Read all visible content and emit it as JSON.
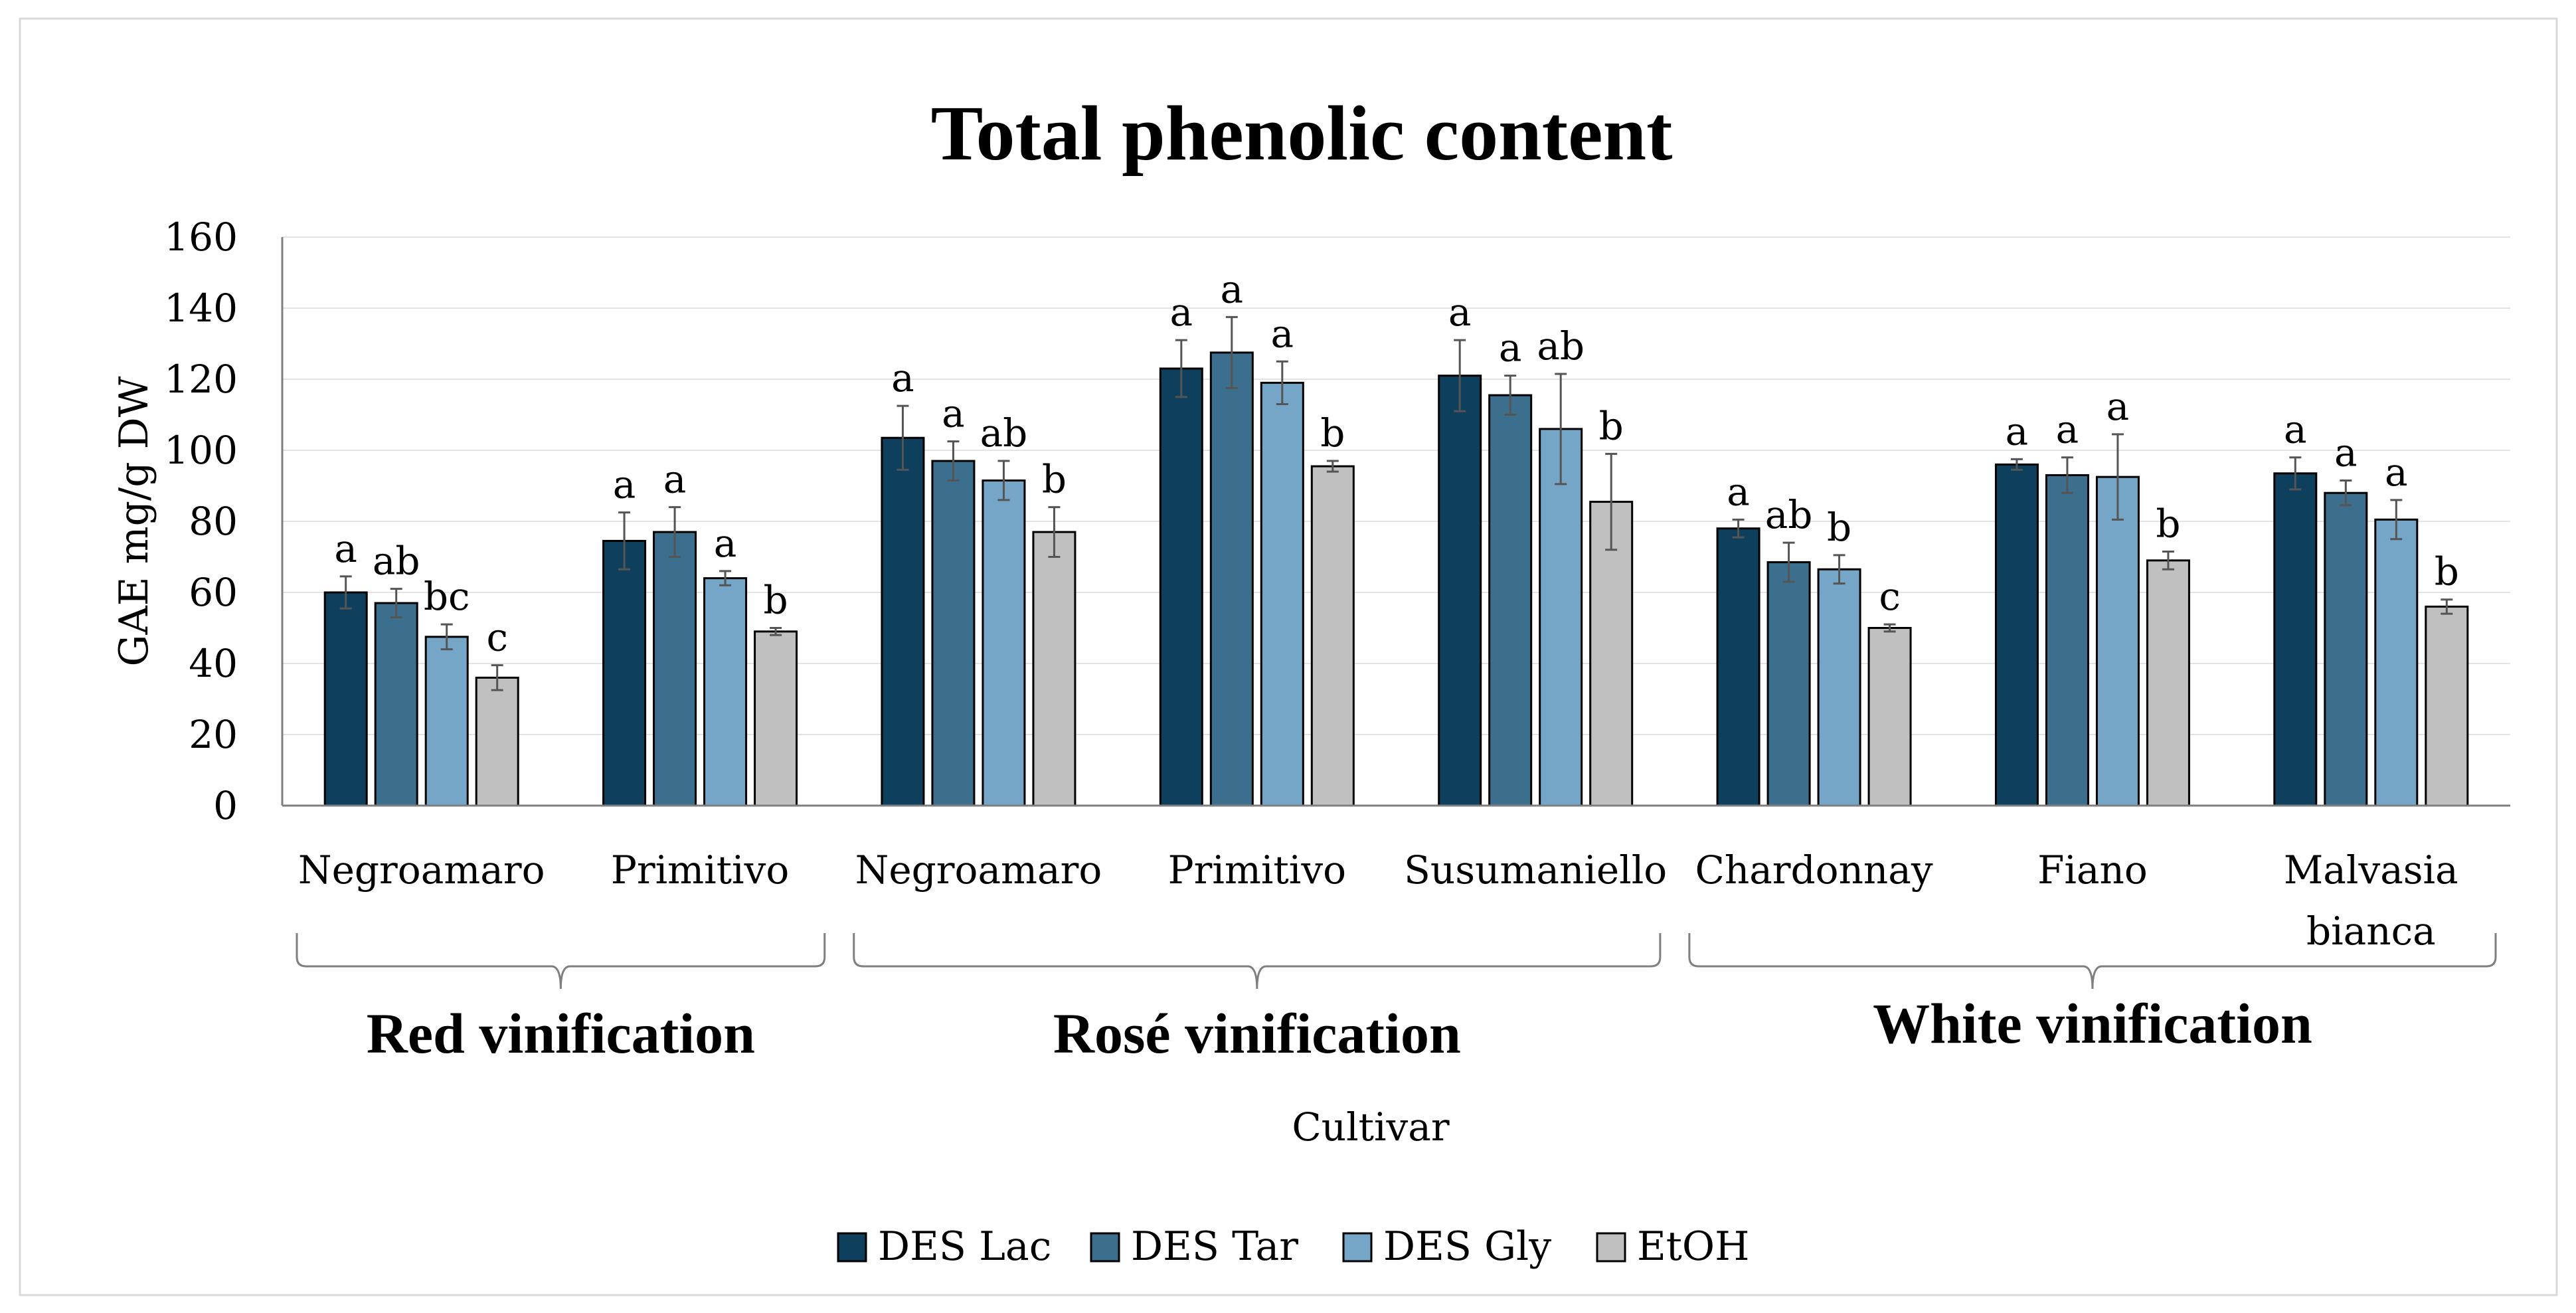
{
  "chart_data": {
    "type": "bar",
    "title": "Total phenolic content",
    "ylabel": "GAE mg/g DW",
    "xlabel": "Cultivar",
    "ylim": [
      0,
      160
    ],
    "yticks": [
      0,
      20,
      40,
      60,
      80,
      100,
      120,
      140,
      160
    ],
    "grid": true,
    "legend_position": "bottom",
    "categories": [
      "Negroamaro",
      "Primitivo",
      "Negroamaro",
      "Primitivo",
      "Susumaniello",
      "Chardonnay",
      "Fiano",
      "Malvasia bianca"
    ],
    "category_lines": [
      [
        "Negroamaro"
      ],
      [
        "Primitivo"
      ],
      [
        "Negroamaro"
      ],
      [
        "Primitivo"
      ],
      [
        "Susumaniello"
      ],
      [
        "Chardonnay"
      ],
      [
        "Fiano"
      ],
      [
        "Malvasia",
        "bianca"
      ]
    ],
    "groups": [
      {
        "label": "Red vinification",
        "categories": [
          0,
          1
        ]
      },
      {
        "label": "Rosé vinification",
        "categories": [
          2,
          3,
          4
        ]
      },
      {
        "label": "White vinification",
        "categories": [
          5,
          6,
          7
        ]
      }
    ],
    "series": [
      {
        "name": "DES Lac",
        "color": "#0e3f5c",
        "values": [
          60,
          74.5,
          103.5,
          123,
          121,
          78,
          96,
          93.5
        ],
        "errors": [
          4.5,
          8,
          9,
          8,
          10,
          2.5,
          1.5,
          4.5
        ],
        "letters": [
          "a",
          "a",
          "a",
          "a",
          "a",
          "a",
          "a",
          "a"
        ]
      },
      {
        "name": "DES Tar",
        "color": "#3c6f8e",
        "values": [
          57,
          77,
          97,
          127.5,
          115.5,
          68.5,
          93,
          88
        ],
        "errors": [
          4,
          7,
          5.5,
          10,
          5.5,
          5.5,
          5,
          3.5
        ],
        "letters": [
          "ab",
          "a",
          "a",
          "a",
          "a",
          "ab",
          "a",
          "a"
        ]
      },
      {
        "name": "DES Gly",
        "color": "#75a6c8",
        "values": [
          47.5,
          64,
          91.5,
          119,
          106,
          66.5,
          92.5,
          80.5
        ],
        "errors": [
          3.5,
          2,
          5.5,
          6,
          15.5,
          4,
          12,
          5.5
        ],
        "letters": [
          "bc",
          "a",
          "ab",
          "a",
          "ab",
          "b",
          "a",
          "a"
        ]
      },
      {
        "name": "EtOH",
        "color": "#c0c0c0",
        "values": [
          36,
          49,
          77,
          95.5,
          85.5,
          50,
          69,
          56
        ],
        "errors": [
          3.5,
          1,
          7,
          1.5,
          13.5,
          1,
          2.5,
          2
        ],
        "letters": [
          "c",
          "b",
          "b",
          "b",
          "b",
          "c",
          "b",
          "b"
        ]
      }
    ]
  }
}
